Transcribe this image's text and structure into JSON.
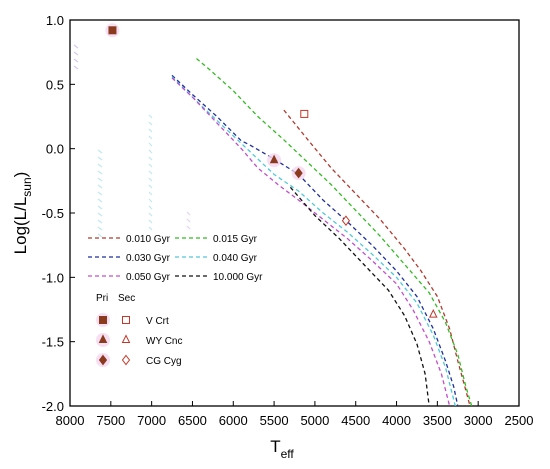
{
  "chart_data": {
    "type": "line",
    "xlabel": {
      "main": "T",
      "sub": "eff"
    },
    "ylabel": {
      "pre": "Log(L/L",
      "sub": "sun",
      "post": ")"
    },
    "xlim": [
      8000,
      2500
    ],
    "ylim": [
      -2.0,
      1.0
    ],
    "xticks": [
      "8000",
      "7500",
      "7000",
      "6500",
      "6000",
      "5500",
      "5000",
      "4500",
      "4000",
      "3500",
      "3000",
      "2500"
    ],
    "yticks": [
      "1.0",
      "0.5",
      "0.0",
      "-0.5",
      "-1.0",
      "-1.5",
      "-2.0"
    ],
    "grid": false,
    "series": [
      {
        "name": "0.010 Gyr",
        "color": "#b03a2e",
        "dash": "4,3",
        "points": [
          [
            5380,
            0.3
          ],
          [
            5100,
            0.08
          ],
          [
            4800,
            -0.15
          ],
          [
            4500,
            -0.35
          ],
          [
            4200,
            -0.55
          ],
          [
            3900,
            -0.78
          ],
          [
            3700,
            -0.95
          ],
          [
            3500,
            -1.15
          ],
          [
            3350,
            -1.4
          ],
          [
            3250,
            -1.65
          ],
          [
            3150,
            -1.88
          ],
          [
            3100,
            -2.0
          ]
        ]
      },
      {
        "name": "0.015 Gyr",
        "color": "#33bb22",
        "dash": "4,3",
        "points": [
          [
            6450,
            0.7
          ],
          [
            6300,
            0.62
          ],
          [
            6000,
            0.45
          ],
          [
            5700,
            0.25
          ],
          [
            5400,
            0.08
          ],
          [
            5100,
            -0.1
          ],
          [
            4800,
            -0.28
          ],
          [
            4500,
            -0.48
          ],
          [
            4200,
            -0.68
          ],
          [
            3900,
            -0.9
          ],
          [
            3600,
            -1.12
          ],
          [
            3400,
            -1.35
          ],
          [
            3250,
            -1.6
          ],
          [
            3150,
            -1.85
          ],
          [
            3080,
            -2.0
          ]
        ]
      },
      {
        "name": "0.030 Gyr",
        "color": "#1f2f9e",
        "dash": "4,3",
        "points": [
          [
            6750,
            0.57
          ],
          [
            6500,
            0.42
          ],
          [
            6200,
            0.25
          ],
          [
            5900,
            0.06
          ],
          [
            5800,
            0.03
          ],
          [
            5500,
            -0.08
          ],
          [
            5200,
            -0.2
          ],
          [
            4900,
            -0.4
          ],
          [
            4600,
            -0.57
          ],
          [
            4300,
            -0.75
          ],
          [
            4000,
            -0.95
          ],
          [
            3750,
            -1.15
          ],
          [
            3550,
            -1.4
          ],
          [
            3400,
            -1.65
          ],
          [
            3300,
            -1.85
          ],
          [
            3250,
            -2.0
          ]
        ]
      },
      {
        "name": "0.040 Gyr",
        "color": "#4fc8d8",
        "dash": "4,3",
        "points": [
          [
            6750,
            0.56
          ],
          [
            6500,
            0.4
          ],
          [
            6200,
            0.22
          ],
          [
            5900,
            0.04
          ],
          [
            5700,
            -0.08
          ],
          [
            5500,
            -0.2
          ],
          [
            5200,
            -0.33
          ],
          [
            4900,
            -0.5
          ],
          [
            4600,
            -0.65
          ],
          [
            4300,
            -0.82
          ],
          [
            4000,
            -1.0
          ],
          [
            3750,
            -1.2
          ],
          [
            3550,
            -1.45
          ],
          [
            3400,
            -1.7
          ],
          [
            3280,
            -2.0
          ]
        ]
      },
      {
        "name": "0.050 Gyr",
        "color": "#c24dcc",
        "dash": "4,3",
        "points": [
          [
            6750,
            0.55
          ],
          [
            6500,
            0.4
          ],
          [
            6200,
            0.2
          ],
          [
            5900,
            0.0
          ],
          [
            5700,
            -0.15
          ],
          [
            5450,
            -0.28
          ],
          [
            5200,
            -0.4
          ],
          [
            4900,
            -0.55
          ],
          [
            4600,
            -0.7
          ],
          [
            4300,
            -0.87
          ],
          [
            4000,
            -1.05
          ],
          [
            3800,
            -1.25
          ],
          [
            3600,
            -1.5
          ],
          [
            3450,
            -1.75
          ],
          [
            3350,
            -2.0
          ]
        ]
      },
      {
        "name": "10.000 Gyr",
        "color": "#111111",
        "dash": "4,3",
        "points": [
          [
            5300,
            -0.3
          ],
          [
            5000,
            -0.52
          ],
          [
            4700,
            -0.7
          ],
          [
            4400,
            -0.9
          ],
          [
            4100,
            -1.1
          ],
          [
            3900,
            -1.3
          ],
          [
            3750,
            -1.52
          ],
          [
            3650,
            -1.75
          ],
          [
            3600,
            -2.0
          ]
        ]
      }
    ],
    "markers": [
      {
        "name": "V Crt",
        "kind": "square",
        "filled": true,
        "color": "#8b3a1e",
        "x": 7480,
        "y": 0.92
      },
      {
        "name": "V Crt",
        "kind": "square",
        "filled": false,
        "color": "#c0392b",
        "x": 5130,
        "y": 0.27
      },
      {
        "name": "WY Cnc",
        "kind": "triangle",
        "filled": true,
        "color": "#8b3a1e",
        "x": 5500,
        "y": -0.09
      },
      {
        "name": "WY Cnc",
        "kind": "triangle",
        "filled": false,
        "color": "#c0392b",
        "x": 3550,
        "y": -1.29
      },
      {
        "name": "CG Cyg",
        "kind": "diamond",
        "filled": true,
        "color": "#8b3a1e",
        "x": 5200,
        "y": -0.19
      },
      {
        "name": "CG Cyg",
        "kind": "diamond",
        "filled": false,
        "color": "#c0392b",
        "x": 4620,
        "y": -0.56
      }
    ],
    "legend": {
      "placement": "lower-left",
      "lines": [
        "0.010 Gyr",
        "0.015 Gyr",
        "0.030 Gyr",
        "0.040 Gyr",
        "0.050 Gyr",
        "10.000 Gyr"
      ],
      "col_headers": [
        "Pri",
        "Sec"
      ],
      "stars": [
        "V Crt",
        "WY Cnc",
        "CG Cyg"
      ]
    }
  }
}
